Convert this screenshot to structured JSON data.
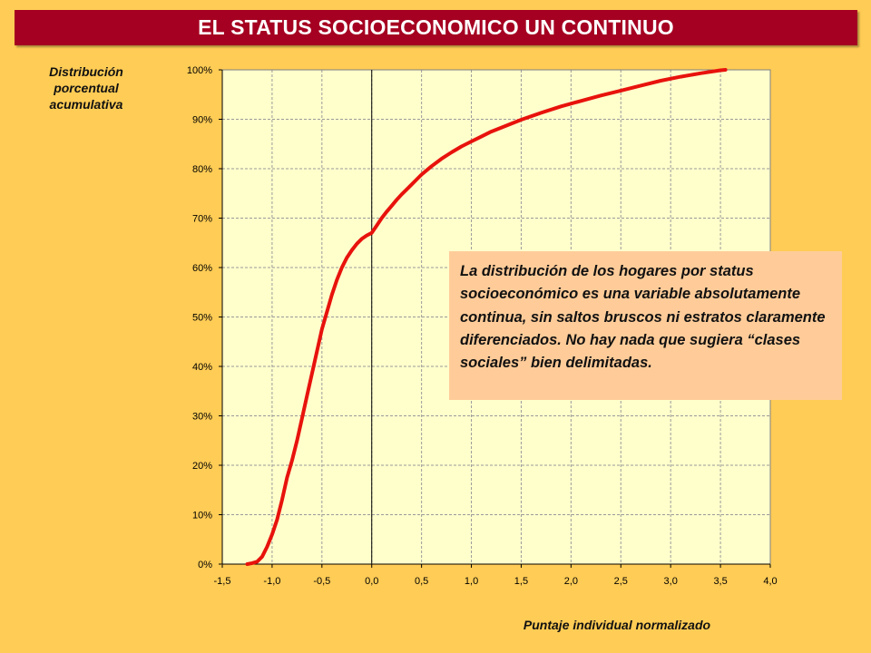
{
  "title": "EL STATUS SOCIOECONOMICO UN CONTINUO",
  "annotation": "La distribución de los hogares por status socioeconómico es una variable absolutamente continua, sin saltos bruscos ni estratos claramente diferenciados. No hay nada que sugiera “clases sociales” bien delimitadas.",
  "colors": {
    "background": "#FFCC55",
    "title_bar": "#A50021",
    "plot_area": "#FFFFCC",
    "curve": "#E8120C",
    "annotation_box": "#FFCC99"
  },
  "chart_data": {
    "type": "line",
    "ylabel": "Distribución porcentual acumulativa",
    "xlabel": "Puntaje individual normalizado",
    "xlim": [
      -1.5,
      4.0
    ],
    "ylim": [
      0,
      100
    ],
    "x_tick_labels": [
      "-1,5",
      "-1,0",
      "-0,5",
      "0,0",
      "0,5",
      "1,0",
      "1,5",
      "2,0",
      "2,5",
      "3,0",
      "3,5",
      "4,0"
    ],
    "y_tick_labels": [
      "0%",
      "10%",
      "20%",
      "30%",
      "40%",
      "50%",
      "60%",
      "70%",
      "80%",
      "90%",
      "100%"
    ],
    "grid": true,
    "series": [
      {
        "x": [
          -1.25,
          -1.2,
          -1.15,
          -1.1,
          -1.05,
          -1.0,
          -0.95,
          -0.9,
          -0.85,
          -0.8,
          -0.75,
          -0.7,
          -0.65,
          -0.6,
          -0.55,
          -0.5,
          -0.45,
          -0.4,
          -0.35,
          -0.3,
          -0.25,
          -0.2,
          -0.15,
          -0.1,
          -0.05,
          0.0,
          0.05,
          0.1,
          0.15,
          0.2,
          0.25,
          0.3,
          0.35,
          0.4,
          0.45,
          0.5,
          0.6,
          0.7,
          0.8,
          0.9,
          1.0,
          1.1,
          1.2,
          1.3,
          1.4,
          1.5,
          1.7,
          1.9,
          2.1,
          2.3,
          2.5,
          2.7,
          2.9,
          3.1,
          3.3,
          3.5,
          3.55
        ],
        "y": [
          0,
          0.2,
          0.5,
          1.5,
          3.5,
          6,
          9,
          13,
          17.5,
          21,
          25,
          29.5,
          34,
          38.5,
          43,
          47.5,
          51,
          54.5,
          57.5,
          60,
          62,
          63.5,
          64.8,
          65.8,
          66.5,
          67,
          68.5,
          70,
          71.3,
          72.5,
          73.7,
          74.8,
          75.8,
          76.8,
          77.8,
          78.8,
          80.5,
          82,
          83.3,
          84.5,
          85.5,
          86.5,
          87.5,
          88.3,
          89.1,
          89.9,
          91.3,
          92.6,
          93.7,
          94.8,
          95.8,
          96.8,
          97.8,
          98.6,
          99.3,
          99.9,
          100
        ]
      }
    ],
    "vertical_reference_line_x": 0.0
  }
}
